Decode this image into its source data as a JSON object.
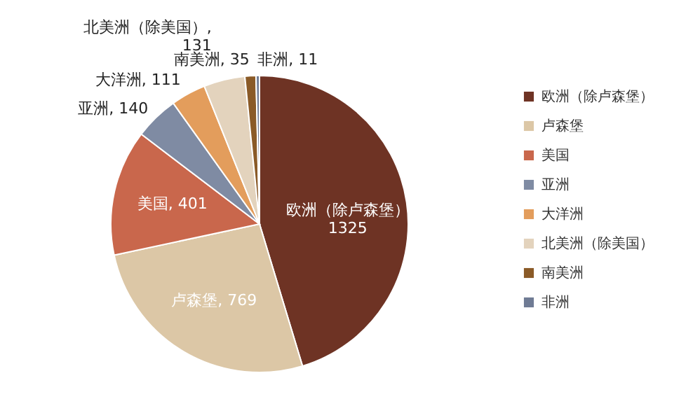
{
  "chart_data": {
    "type": "pie",
    "categories": [
      "欧洲（除卢森堡）",
      "卢森堡",
      "美国",
      "亚洲",
      "大洋洲",
      "北美洲（除美国）",
      "南美洲",
      "非洲"
    ],
    "values": [
      1325,
      769,
      401,
      140,
      111,
      131,
      35,
      11
    ],
    "colors": [
      "#6e3324",
      "#dcc7a6",
      "#c9674c",
      "#7f8ba3",
      "#e39d5c",
      "#e3d3bd",
      "#8a5a27",
      "#6f7b94"
    ],
    "value_labels": [
      "欧洲（除卢森堡）\n1325",
      "卢森堡, 769",
      "美国, 401",
      "亚洲, 140",
      "大洋洲, 111",
      "北美洲（除美国）,\n131",
      "南美洲, 35",
      "非洲, 11"
    ],
    "legend": "right"
  }
}
